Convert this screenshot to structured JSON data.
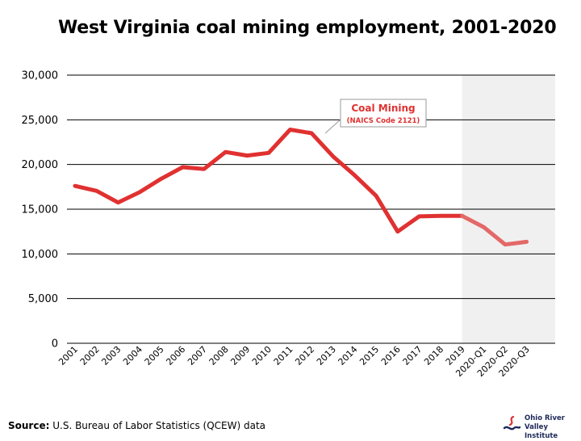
{
  "chart_data": {
    "type": "line",
    "title": "West Virginia coal mining employment, 2001-2020",
    "categories": [
      "2001",
      "2002",
      "2003",
      "2004",
      "2005",
      "2006",
      "2007",
      "2008",
      "2009",
      "2010",
      "2011",
      "2012",
      "2013",
      "2014",
      "2015",
      "2016",
      "2017",
      "2018",
      "2019",
      "2020-Q1",
      "2020-Q2",
      "2020-Q3"
    ],
    "series": [
      {
        "name": "Coal Mining",
        "subtitle": "(NAICS Code 2121)",
        "color": "#e03131",
        "projected_color": "#e46868",
        "values": [
          17600,
          17050,
          15750,
          16900,
          18400,
          19700,
          19500,
          21400,
          21000,
          21300,
          23900,
          23500,
          20900,
          18800,
          16500,
          12500,
          14200,
          14250,
          14250,
          13000,
          11050,
          11350
        ]
      }
    ],
    "ylim": [
      0,
      30000
    ],
    "yticks": [
      "0",
      "5,000",
      "10,000",
      "15,000",
      "20,000",
      "25,000",
      "30,000"
    ],
    "ytick_values": [
      0,
      5000,
      10000,
      15000,
      20000,
      25000,
      30000
    ],
    "xlabel": "",
    "ylabel": "",
    "grid": true,
    "shaded_region": {
      "from": "2019",
      "to": "2020-Q3",
      "color": "#f0f0f0"
    },
    "grid_color": "#000000"
  },
  "source": {
    "label": "Source:",
    "text": "U.S. Bureau of Labor Statistics (QCEW) data"
  },
  "logo": {
    "line1": "Ohio River",
    "line2": "Valley Institute"
  }
}
